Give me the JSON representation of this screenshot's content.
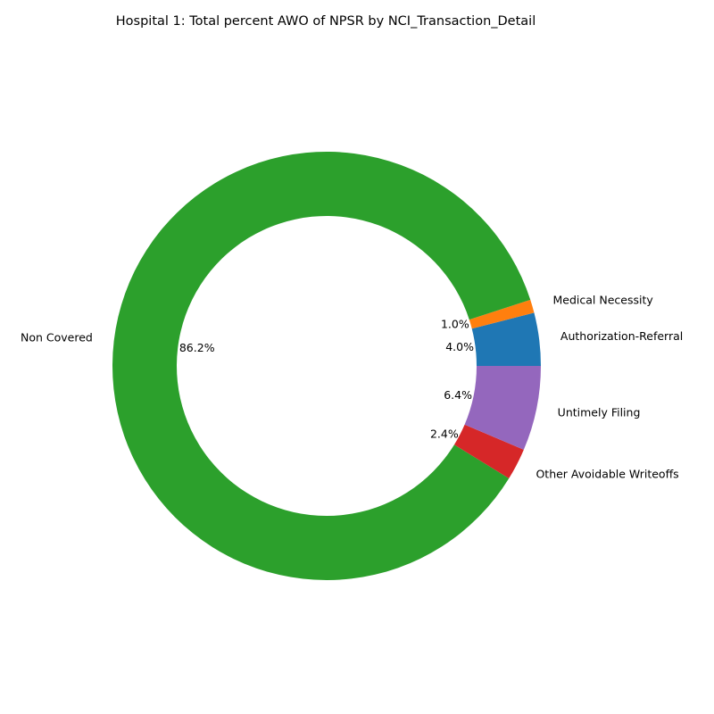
{
  "chart_data": {
    "type": "pie",
    "donut": true,
    "title": "Hospital 1: Total percent AWO of NPSR by NCI_Transaction_Detail",
    "slices": [
      {
        "label": "Authorization-Referral",
        "value": 4.0,
        "pct_label": "4.0%",
        "color": "#1f77b4"
      },
      {
        "label": "Medical Necessity",
        "value": 1.0,
        "pct_label": "1.0%",
        "color": "#ff7f0e"
      },
      {
        "label": "Non Covered",
        "value": 86.2,
        "pct_label": "86.2%",
        "color": "#2ca02c"
      },
      {
        "label": "Other Avoidable Writeoffs",
        "value": 2.4,
        "pct_label": "2.4%",
        "color": "#d62728"
      },
      {
        "label": "Untimely Filing",
        "value": 6.4,
        "pct_label": "6.4%",
        "color": "#9467bd"
      }
    ],
    "start_angle_deg": 0,
    "direction": "counterclockwise",
    "legend": "none"
  }
}
